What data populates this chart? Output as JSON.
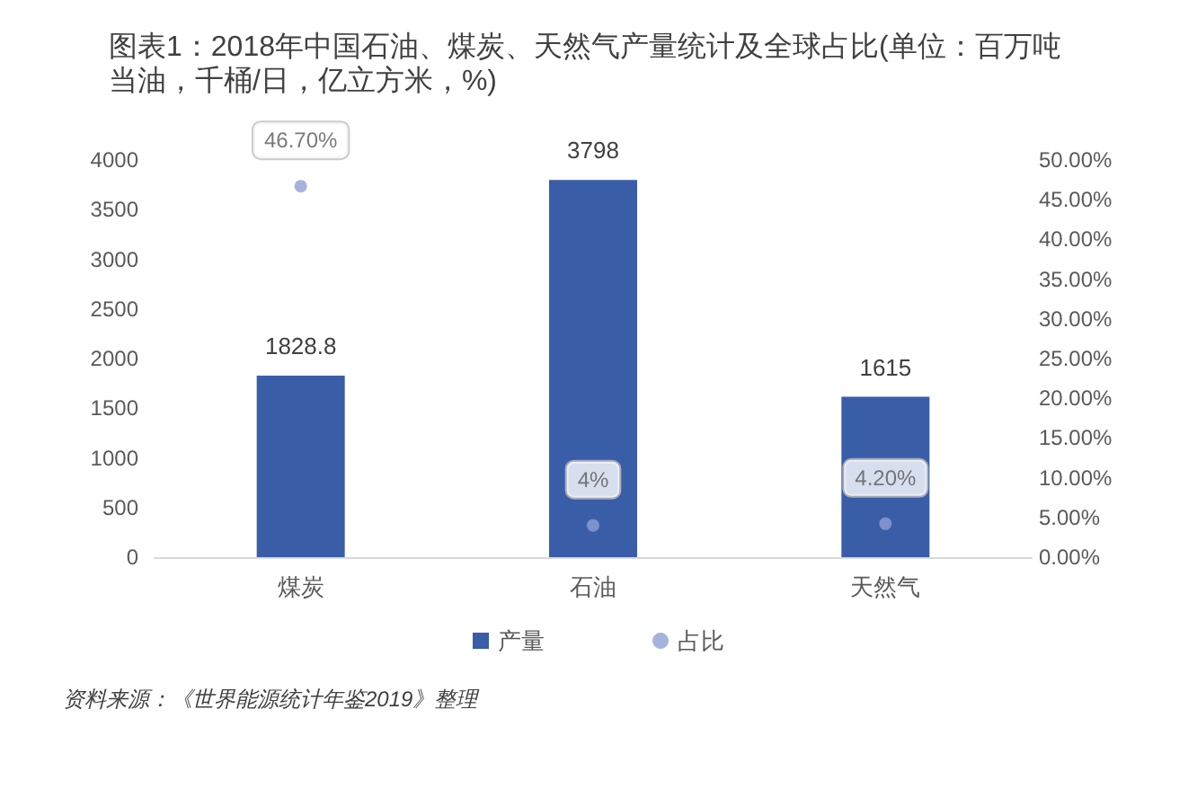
{
  "chart_data": {
    "type": "bar",
    "title": "图表1：2018年中国石油、煤炭、天然气产量统计及全球占比(单位：百万吨当油，千桶/日，亿立方米，%)",
    "annotations": [
      "资料来源：《世界能源统计年鉴2019》整理"
    ],
    "categories": [
      "煤炭",
      "石油",
      "天然气"
    ],
    "series": [
      {
        "name": "产量",
        "color": "#3a5da8",
        "values": [
          1828.8,
          3798,
          1615
        ],
        "value_labels": [
          "1828.8",
          "3798",
          "1615"
        ]
      },
      {
        "name": "占比",
        "type": "scatter",
        "axis": "y2",
        "color": "#8e9fd3",
        "x": [
          "煤炭",
          "石油",
          "天然气"
        ],
        "values": [
          46.7,
          4,
          4.2
        ],
        "value_labels": [
          "46.70%",
          "4%",
          "4.20%"
        ]
      }
    ],
    "ylim": [
      0,
      4000
    ],
    "yticks": [
      0,
      500,
      1000,
      1500,
      2000,
      2500,
      3000,
      3500,
      4000
    ],
    "y2lim": [
      0,
      50
    ],
    "y2ticks": [
      {
        "value": 0,
        "label": "0.00%"
      },
      {
        "value": 5,
        "label": "5.00%"
      },
      {
        "value": 10,
        "label": "10.00%"
      },
      {
        "value": 15,
        "label": "15.00%"
      },
      {
        "value": 20,
        "label": "20.00%"
      },
      {
        "value": 25,
        "label": "25.00%"
      },
      {
        "value": 30,
        "label": "30.00%"
      },
      {
        "value": 35,
        "label": "35.00%"
      },
      {
        "value": 40,
        "label": "40.00%"
      },
      {
        "value": 45,
        "label": "45.00%"
      },
      {
        "value": 50,
        "label": "50.00%"
      }
    ],
    "marker": "circle",
    "legend": "bottom"
  }
}
